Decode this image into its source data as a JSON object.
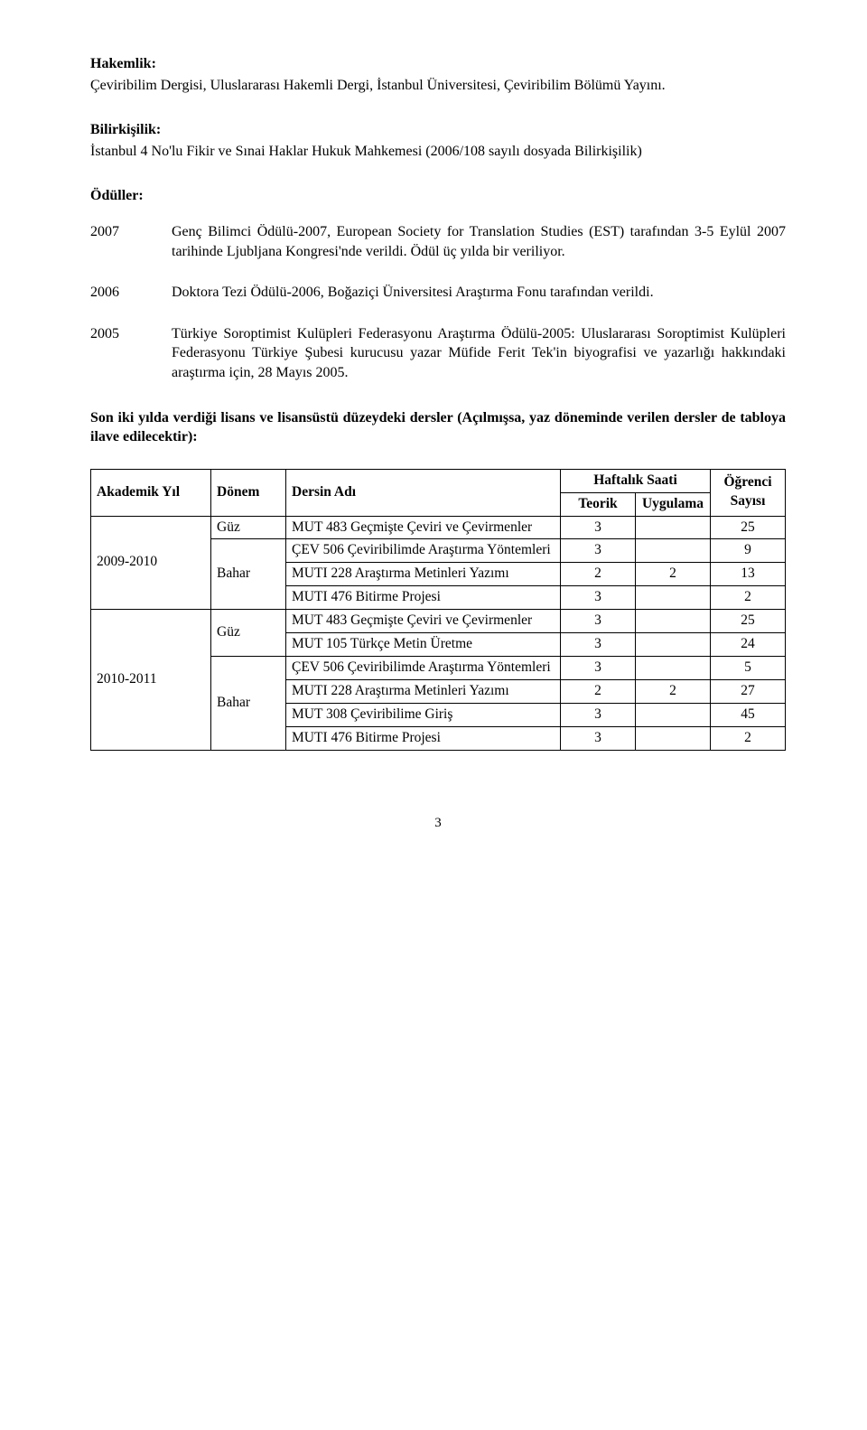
{
  "sections": {
    "hakemlik": {
      "heading": "Hakemlik:",
      "body": "Çeviribilim Dergisi, Uluslararası Hakemli Dergi, İstanbul Üniversitesi, Çeviribilim Bölümü Yayını."
    },
    "bilirkisilik": {
      "heading": "Bilirkişilik:",
      "body": "İstanbul 4 No'lu Fikir ve Sınai Haklar Hukuk Mahkemesi (2006/108 sayılı dosyada Bilirkişilik)"
    },
    "oduller": {
      "heading": "Ödüller:",
      "items": [
        {
          "year": "2007",
          "text": "Genç Bilimci Ödülü-2007, European Society for Translation Studies (EST) tarafından 3-5 Eylül 2007 tarihinde Ljubljana Kongresi'nde verildi. Ödül üç yılda bir veriliyor."
        },
        {
          "year": "2006",
          "text": "Doktora Tezi Ödülü-2006, Boğaziçi Üniversitesi Araştırma Fonu tarafından verildi."
        },
        {
          "year": "2005",
          "text": "Türkiye Soroptimist Kulüpleri Federasyonu Araştırma Ödülü-2005: Uluslararası Soroptimist Kulüpleri Federasyonu Türkiye Şubesi kurucusu yazar Müfide Ferit Tek'in biyografisi ve yazarlığı hakkındaki araştırma için, 28 Mayıs 2005."
        }
      ]
    },
    "dersler_heading": "Son iki yılda verdiği lisans ve lisansüstü düzeydeki dersler (Açılmışsa, yaz döneminde verilen dersler de tabloya ilave edilecektir):"
  },
  "table": {
    "headers": {
      "akademik_yil": "Akademik Yıl",
      "donem": "Dönem",
      "dersin_adi": "Dersin Adı",
      "haftalik_saati": "Haftalık Saati",
      "teorik": "Teorik",
      "uygulama": "Uygulama",
      "ogrenci_sayisi": "Öğrenci Sayısı"
    },
    "groups": [
      {
        "year": "2009-2010",
        "donems": [
          {
            "donem": "Güz",
            "rows": [
              {
                "name": "MUT 483 Geçmişte Çeviri ve Çevirmenler",
                "teorik": "3",
                "uygulama": "",
                "sayi": "25"
              }
            ]
          },
          {
            "donem": "Bahar",
            "rows": [
              {
                "name": "ÇEV 506 Çeviribilimde Araştırma Yöntemleri",
                "teorik": "3",
                "uygulama": "",
                "sayi": "9"
              },
              {
                "name": "MUTI 228 Araştırma Metinleri Yazımı",
                "teorik": "2",
                "uygulama": "2",
                "sayi": "13"
              },
              {
                "name": "MUTI 476 Bitirme Projesi",
                "teorik": "3",
                "uygulama": "",
                "sayi": "2"
              }
            ]
          }
        ]
      },
      {
        "year": "2010-2011",
        "donems": [
          {
            "donem": "Güz",
            "rows": [
              {
                "name": "MUT 483 Geçmişte Çeviri ve Çevirmenler",
                "teorik": "3",
                "uygulama": "",
                "sayi": "25"
              },
              {
                "name": "MUT 105 Türkçe Metin Üretme",
                "teorik": "3",
                "uygulama": "",
                "sayi": "24"
              }
            ]
          },
          {
            "donem": "Bahar",
            "rows": [
              {
                "name": "ÇEV 506 Çeviribilimde Araştırma Yöntemleri",
                "teorik": "3",
                "uygulama": "",
                "sayi": "5"
              },
              {
                "name": "MUTI 228 Araştırma Metinleri Yazımı",
                "teorik": "2",
                "uygulama": "2",
                "sayi": "27"
              },
              {
                "name": "MUT 308 Çeviribilime Giriş",
                "teorik": "3",
                "uygulama": "",
                "sayi": "45"
              },
              {
                "name": "MUTI 476 Bitirme Projesi",
                "teorik": "3",
                "uygulama": "",
                "sayi": "2"
              }
            ]
          }
        ]
      }
    ]
  },
  "page_number": "3"
}
